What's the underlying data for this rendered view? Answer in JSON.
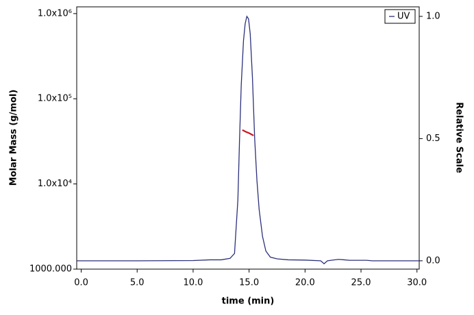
{
  "chart_data": {
    "type": "line",
    "x_label": "time (min)",
    "y_label": "Molar Mass (g/mol)",
    "y2_label": "Relative Scale",
    "xlim": [
      -0.4,
      30.2
    ],
    "ylim": [
      1000,
      1200000
    ],
    "y2lim": [
      -0.034,
      1.039
    ],
    "y_scale": "log",
    "legend": "upper right",
    "xticks": [
      {
        "value": 0,
        "label": "0.0"
      },
      {
        "value": 5,
        "label": "5.0"
      },
      {
        "value": 10,
        "label": "10.0"
      },
      {
        "value": 15,
        "label": "15.0"
      },
      {
        "value": 20,
        "label": "20.0"
      },
      {
        "value": 25,
        "label": "25.0"
      },
      {
        "value": 30,
        "label": "30.0"
      }
    ],
    "yticks": [
      {
        "value": 1000,
        "label": "1000.000"
      },
      {
        "value": 10000,
        "label": "1.0x10⁴"
      },
      {
        "value": 100000,
        "label": "1.0x10⁵"
      },
      {
        "value": 1000000,
        "label": "1.0x10⁶"
      }
    ],
    "y2ticks": [
      {
        "value": 0,
        "label": "0.0"
      },
      {
        "value": 0.5,
        "label": "0.5"
      },
      {
        "value": 1,
        "label": "1.0"
      }
    ],
    "series": [
      {
        "name": "UV",
        "color": "#2b2f7a",
        "axis": "y2",
        "x": [
          -0.4,
          5,
          10,
          11.5,
          12.5,
          13.3,
          13.7,
          14.0,
          14.15,
          14.3,
          14.5,
          14.65,
          14.8,
          14.95,
          15.1,
          15.3,
          15.5,
          15.7,
          15.9,
          16.2,
          16.5,
          16.9,
          17.5,
          18.5,
          20,
          21.4,
          21.7,
          22.0,
          22.5,
          23.0,
          23.5,
          24.0,
          25.5,
          26.0,
          30.2
        ],
        "values": [
          0,
          0,
          0.001,
          0.004,
          0.004,
          0.01,
          0.03,
          0.25,
          0.5,
          0.72,
          0.9,
          0.97,
          1.0,
          0.99,
          0.93,
          0.75,
          0.5,
          0.33,
          0.21,
          0.1,
          0.04,
          0.015,
          0.008,
          0.004,
          0.003,
          0.0,
          -0.012,
          0.0,
          0.003,
          0.006,
          0.004,
          0.002,
          0.002,
          0.0,
          0.0
        ]
      },
      {
        "color": "#cc1122",
        "axis": "y",
        "x": [
          14.4,
          14.7,
          15.0,
          15.4
        ],
        "values": [
          43000,
          41000,
          39500,
          37000
        ]
      }
    ]
  }
}
